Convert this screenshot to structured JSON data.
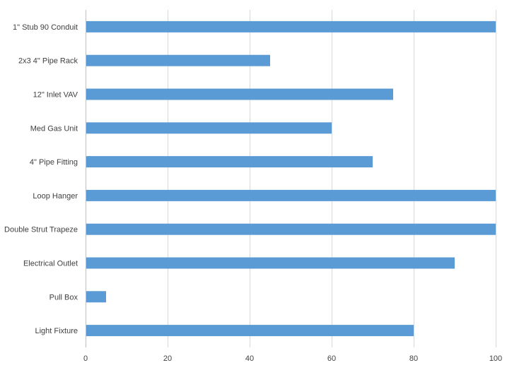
{
  "chart_data": {
    "type": "bar",
    "orientation": "horizontal",
    "title": "",
    "xlabel": "",
    "ylabel": "",
    "categories": [
      "1\" Stub 90 Conduit",
      "2x3 4\" Pipe Rack",
      "12\" Inlet VAV",
      "Med Gas Unit",
      "4\" Pipe Fitting",
      "Loop Hanger",
      "Double Strut Trapeze",
      "Electrical Outlet",
      "Pull Box",
      "Light Fixture"
    ],
    "values": [
      100,
      45,
      75,
      60,
      70,
      100,
      100,
      90,
      5,
      80
    ],
    "xlim": [
      0,
      100
    ],
    "xticks": [
      0,
      20,
      40,
      60,
      80,
      100
    ],
    "grid": true,
    "legend": "none",
    "bar_color": "#5B9BD5",
    "grid_color": "#D9D9D9"
  }
}
